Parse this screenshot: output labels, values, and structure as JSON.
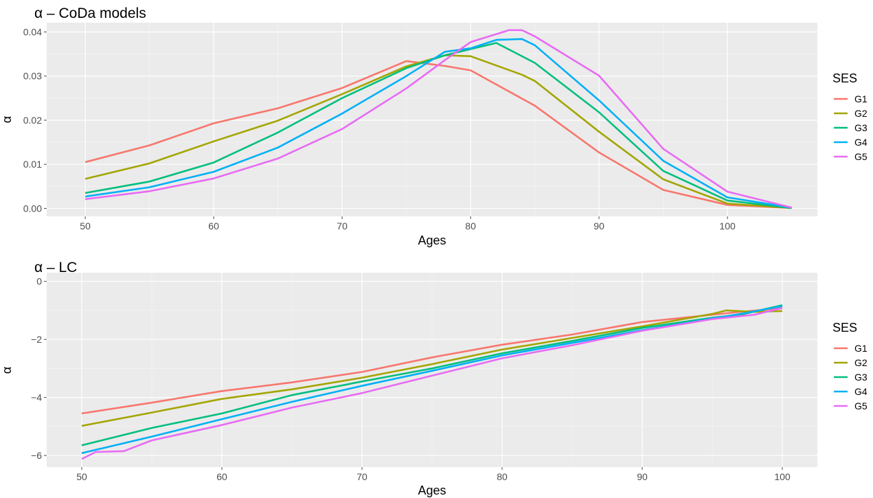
{
  "colors": {
    "panel": "#ebebeb",
    "grid_major": "#ffffff",
    "tick": "#4d4d4d",
    "G1": "#F8766D",
    "G2": "#A3A500",
    "G3": "#00BF7D",
    "G4": "#00B0F6",
    "G5": "#E76BF3"
  },
  "chart_data": [
    {
      "type": "line",
      "title": "α –  CoDa models",
      "xlabel": "Ages",
      "ylabel": "α",
      "xlim": [
        47.0,
        107.0
      ],
      "ylim": [
        -0.0018,
        0.0421
      ],
      "xticks": [
        50,
        60,
        70,
        80,
        90,
        100
      ],
      "xtick_labels": [
        "50",
        "60",
        "70",
        "80",
        "90",
        "100"
      ],
      "yticks": [
        0,
        0.01,
        0.02,
        0.03,
        0.04
      ],
      "ytick_labels": [
        "0.00",
        "0.01",
        "0.02",
        "0.03",
        "0.04"
      ],
      "grid": true,
      "legend": {
        "title": "SES",
        "position": "right",
        "entries": [
          "G1",
          "G2",
          "G3",
          "G4",
          "G5"
        ]
      },
      "series": [
        {
          "name": "G1",
          "x": [
            50,
            55,
            60,
            65,
            70,
            75,
            78,
            80,
            85,
            90,
            95,
            100,
            105
          ],
          "y": [
            0.0105,
            0.0143,
            0.0193,
            0.0227,
            0.0273,
            0.0334,
            0.0323,
            0.0313,
            0.0233,
            0.0127,
            0.0042,
            0.0008,
            0.0001
          ]
        },
        {
          "name": "G2",
          "x": [
            50,
            55,
            60,
            65,
            70,
            75,
            78,
            80,
            84,
            85,
            90,
            95,
            100,
            105
          ],
          "y": [
            0.0067,
            0.0102,
            0.0152,
            0.0199,
            0.0259,
            0.0322,
            0.0347,
            0.0345,
            0.0303,
            0.0289,
            0.0174,
            0.0066,
            0.0011,
            0.0001
          ]
        },
        {
          "name": "G3",
          "x": [
            50,
            55,
            60,
            65,
            70,
            75,
            78,
            80,
            82,
            85,
            90,
            95,
            100,
            105
          ],
          "y": [
            0.0035,
            0.0061,
            0.0104,
            0.0172,
            0.025,
            0.0318,
            0.0347,
            0.0361,
            0.0375,
            0.033,
            0.0218,
            0.0085,
            0.0018,
            0.0001
          ]
        },
        {
          "name": "G4",
          "x": [
            50,
            55,
            60,
            65,
            70,
            75,
            78,
            80,
            82,
            84,
            85,
            90,
            95,
            100,
            105
          ],
          "y": [
            0.0027,
            0.0048,
            0.0083,
            0.0138,
            0.0215,
            0.03,
            0.0355,
            0.0363,
            0.0382,
            0.0384,
            0.037,
            0.0245,
            0.0108,
            0.0025,
            0.0002
          ]
        },
        {
          "name": "G5",
          "x": [
            50,
            55,
            60,
            65,
            70,
            75,
            78,
            80,
            83,
            84,
            85,
            90,
            95,
            100,
            105
          ],
          "y": [
            0.0021,
            0.0039,
            0.0068,
            0.0113,
            0.018,
            0.0272,
            0.0336,
            0.0377,
            0.0404,
            0.0404,
            0.039,
            0.0301,
            0.0135,
            0.0038,
            0.0002
          ]
        }
      ]
    },
    {
      "type": "line",
      "title": "α – LC",
      "xlabel": "Ages",
      "ylabel": "α",
      "xlim": [
        47.5,
        102.5
      ],
      "ylim": [
        -6.4,
        0.3
      ],
      "xticks": [
        50,
        60,
        70,
        80,
        90,
        100
      ],
      "xtick_labels": [
        "50",
        "60",
        "70",
        "80",
        "90",
        "100"
      ],
      "yticks": [
        0,
        -2,
        -4,
        -6
      ],
      "ytick_labels": [
        "0",
        "−2",
        "−4",
        "−6"
      ],
      "grid": true,
      "legend": {
        "title": "SES",
        "position": "right",
        "entries": [
          "G1",
          "G2",
          "G3",
          "G4",
          "G5"
        ]
      },
      "series": [
        {
          "name": "G1",
          "x": [
            50,
            55,
            60,
            65,
            70,
            75,
            80,
            85,
            90,
            95,
            97,
            100
          ],
          "y": [
            -4.55,
            -4.18,
            -3.78,
            -3.48,
            -3.12,
            -2.62,
            -2.18,
            -1.83,
            -1.4,
            -1.15,
            -1.05,
            -0.92
          ]
        },
        {
          "name": "G2",
          "x": [
            50,
            55,
            60,
            65,
            70,
            75,
            80,
            85,
            90,
            95,
            96,
            98,
            100
          ],
          "y": [
            -4.98,
            -4.52,
            -4.05,
            -3.72,
            -3.32,
            -2.85,
            -2.35,
            -1.95,
            -1.55,
            -1.12,
            -1.0,
            -1.05,
            -1.02
          ]
        },
        {
          "name": "G3",
          "x": [
            50,
            55,
            60,
            65,
            70,
            75,
            80,
            85,
            90,
            95,
            97,
            100
          ],
          "y": [
            -5.65,
            -5.05,
            -4.55,
            -3.92,
            -3.45,
            -3.0,
            -2.48,
            -2.05,
            -1.6,
            -1.25,
            -1.15,
            -0.82
          ]
        },
        {
          "name": "G4",
          "x": [
            50,
            55,
            60,
            65,
            70,
            75,
            80,
            85,
            90,
            95,
            97,
            100
          ],
          "y": [
            -5.92,
            -5.35,
            -4.75,
            -4.15,
            -3.6,
            -3.08,
            -2.55,
            -2.12,
            -1.68,
            -1.28,
            -1.12,
            -0.85
          ]
        },
        {
          "name": "G5",
          "x": [
            50,
            51,
            53,
            55,
            60,
            65,
            70,
            75,
            80,
            85,
            90,
            95,
            98,
            100
          ],
          "y": [
            -6.12,
            -5.88,
            -5.85,
            -5.48,
            -4.95,
            -4.35,
            -3.85,
            -3.25,
            -2.65,
            -2.2,
            -1.7,
            -1.3,
            -1.15,
            -0.92
          ]
        }
      ]
    }
  ]
}
